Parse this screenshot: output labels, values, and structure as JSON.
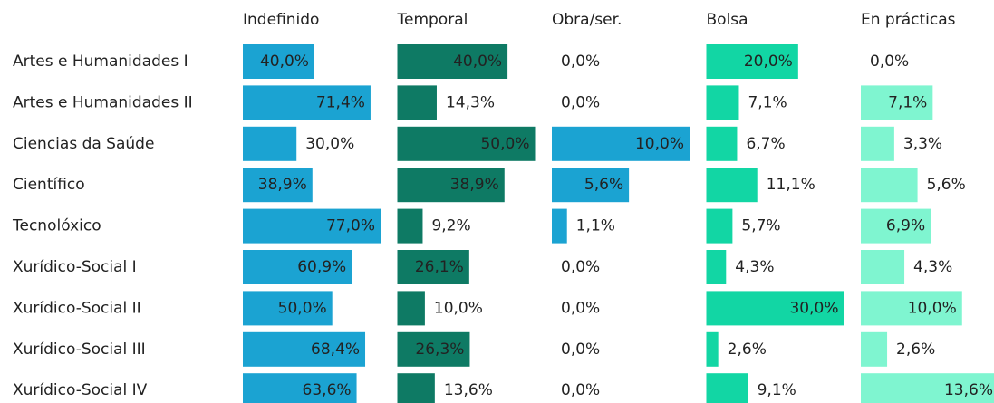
{
  "chart_data": {
    "type": "bar",
    "categories": [
      "Artes e Humanidades I",
      "Artes e Humanidades II",
      "Ciencias da Saúde",
      "Científico",
      "Tecnolóxico",
      "Xurídico-Social I",
      "Xurídico-Social II",
      "Xurídico-Social III",
      "Xurídico-Social IV"
    ],
    "series": [
      {
        "name": "Indefinido",
        "color": "#1ba3d2",
        "xlim": [
          0,
          77
        ],
        "values": [
          40,
          71.4,
          30,
          38.9,
          77,
          60.9,
          50,
          68.4,
          63.6
        ],
        "value_labels": [
          "40,0%",
          "71,4%",
          "30,0%",
          "38,9%",
          "77,0%",
          "60,9%",
          "50,0%",
          "68,4%",
          "63,6%"
        ]
      },
      {
        "name": "Temporal",
        "color": "#0e7a64",
        "xlim": [
          0,
          50
        ],
        "values": [
          40,
          14.3,
          50,
          38.9,
          9.2,
          26.1,
          10,
          26.3,
          13.6
        ],
        "value_labels": [
          "40,0%",
          "14,3%",
          "50,0%",
          "38,9%",
          "9,2%",
          "26,1%",
          "10,0%",
          "26,3%",
          "13,6%"
        ]
      },
      {
        "name": "Obra/ser.",
        "color": "#1ba3d2",
        "xlim": [
          0,
          10
        ],
        "values": [
          0,
          0,
          10,
          5.6,
          1.1,
          0,
          0,
          0,
          0
        ],
        "value_labels": [
          "0,0%",
          "0,0%",
          "10,0%",
          "5,6%",
          "1,1%",
          "0,0%",
          "0,0%",
          "0,0%",
          "0,0%"
        ]
      },
      {
        "name": "Bolsa",
        "color": "#12d6a4",
        "xlim": [
          0,
          30
        ],
        "values": [
          20,
          7.1,
          6.7,
          11.1,
          5.7,
          4.3,
          30,
          2.6,
          9.1
        ],
        "value_labels": [
          "20,0%",
          "7,1%",
          "6,7%",
          "11,1%",
          "5,7%",
          "4,3%",
          "30,0%",
          "2,6%",
          "9,1%"
        ]
      },
      {
        "name": "En prácticas",
        "color": "#7ff5d0",
        "xlim": [
          0,
          13.6
        ],
        "values": [
          0,
          7.1,
          3.3,
          5.6,
          6.9,
          4.3,
          10,
          2.6,
          13.6
        ],
        "value_labels": [
          "0,0%",
          "7,1%",
          "3,3%",
          "5,6%",
          "6,9%",
          "4,3%",
          "10,0%",
          "2,6%",
          "13,6%"
        ]
      }
    ]
  }
}
